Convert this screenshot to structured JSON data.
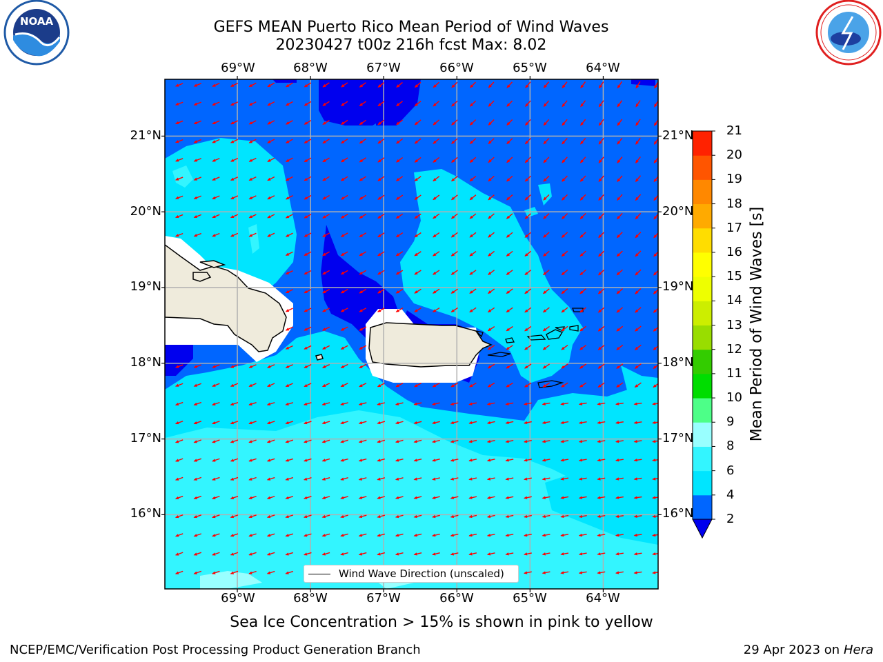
{
  "header": {
    "title_line1": "GEFS MEAN Puerto Rico Mean Period of Wind Waves",
    "title_line2": "20230427 t00z 216h fcst   Max: 8.02"
  },
  "logos": {
    "left": "NOAA",
    "right": "NATIONAL WEATHER SERVICE"
  },
  "map": {
    "lon_labels": [
      "69°W",
      "68°W",
      "67°W",
      "66°W",
      "65°W",
      "64°W"
    ],
    "lat_labels": [
      "21°N",
      "20°N",
      "19°N",
      "18°N",
      "17°N",
      "16°N"
    ],
    "lon_values": [
      -69,
      -68,
      -67,
      -66,
      -65,
      -64
    ],
    "lat_values": [
      21,
      20,
      19,
      18,
      17,
      16
    ],
    "extent": {
      "lon_min": -69.99,
      "lon_max": -63.25,
      "lat_min": 15.02,
      "lat_max": 21.75
    },
    "legend_label": "Wind Wave Direction (unscaled)",
    "arrow_color": "#ff0000",
    "land_color": "#efebdc",
    "grid_color": "#b0b0b0",
    "wave_direction_deg": "from east-northeast",
    "islands": [
      "Hispaniola",
      "Puerto Rico",
      "Virgin Islands"
    ]
  },
  "colorbar": {
    "label": "Mean Period of Wind Waves [s]",
    "ticks": [
      "2",
      "4",
      "6",
      "8",
      "9",
      "10",
      "11",
      "12",
      "13",
      "14",
      "15",
      "16",
      "17",
      "18",
      "19",
      "20",
      "21"
    ],
    "colors": [
      "#0066ff",
      "#00e5ff",
      "#33f5ff",
      "#99ffff",
      "#4dff88",
      "#00dd00",
      "#33cc00",
      "#99dd00",
      "#ccee00",
      "#eeff00",
      "#ffff00",
      "#ffdd00",
      "#ffaa00",
      "#ff8800",
      "#ff5500",
      "#ff2200"
    ],
    "underflow_color": "#0000ee"
  },
  "footer": {
    "subtitle": "Sea Ice Concentration > 15% is shown in pink to yellow",
    "left": "NCEP/EMC/Verification Post Processing Product Generation Branch",
    "right_prefix": "29 Apr 2023 on ",
    "right_machine": "Hera"
  }
}
